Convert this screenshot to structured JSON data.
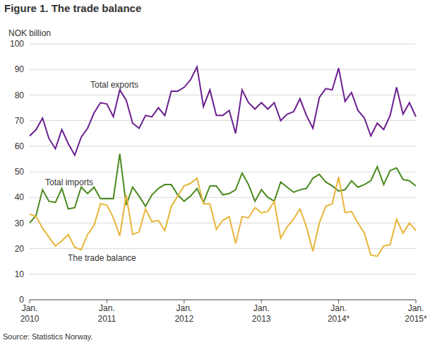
{
  "chart_data": {
    "type": "line",
    "title": "Figure 1. The trade balance",
    "y_label": "NOK billion",
    "source": "Source: Statistics Norway.",
    "categories": [
      "Jan. 2010",
      null,
      null,
      null,
      null,
      null,
      null,
      null,
      null,
      null,
      null,
      null,
      "Jan. 2011",
      null,
      null,
      null,
      null,
      null,
      null,
      null,
      null,
      null,
      null,
      null,
      "Jan. 2012",
      null,
      null,
      null,
      null,
      null,
      null,
      null,
      null,
      null,
      null,
      null,
      "Jan. 2013",
      null,
      null,
      null,
      null,
      null,
      null,
      null,
      null,
      null,
      null,
      null,
      "Jan. 2014*",
      null,
      null,
      null,
      null,
      null,
      null,
      null,
      null,
      null,
      null,
      null,
      "Jan. 2015*"
    ],
    "series": [
      {
        "name": "Total exports",
        "color": "#6b1f8f",
        "values": [
          64,
          66.5,
          71,
          63,
          59,
          66.5,
          61,
          56.5,
          63.5,
          67,
          73,
          77,
          76.5,
          71.5,
          82,
          78,
          69,
          67,
          72,
          71.5,
          75,
          72,
          81.5,
          81.5,
          83,
          86,
          91,
          75.5,
          82,
          72,
          72,
          74,
          65,
          82,
          77,
          74.5,
          77,
          74.5,
          77,
          70,
          72.5,
          73.5,
          78.5,
          72,
          67,
          79,
          82.5,
          82,
          90.5,
          77.5,
          81,
          74,
          71,
          64,
          69,
          66.5,
          72,
          83,
          72.5,
          77,
          71.5
        ]
      },
      {
        "name": "Total imports",
        "color": "#4a8a1f",
        "values": [
          30,
          33,
          43,
          38.5,
          38,
          43.5,
          35.5,
          36,
          44,
          41.5,
          44,
          39.5,
          39.5,
          39.5,
          57,
          37,
          44,
          40.5,
          36.5,
          41,
          43.5,
          45,
          45,
          41,
          38.5,
          40.5,
          43.5,
          38,
          44.5,
          44.5,
          41,
          41.5,
          43,
          49.5,
          45,
          38.5,
          43,
          40,
          38.5,
          46,
          44,
          42,
          43,
          43.5,
          47.5,
          49,
          46,
          44.5,
          42.5,
          43,
          46.5,
          44,
          45,
          46.5,
          52,
          45,
          50.5,
          51.5,
          47,
          46.5,
          44.5
        ]
      },
      {
        "name": "The trade balance",
        "color": "#e8b53a",
        "values": [
          33.5,
          32.5,
          28,
          24.5,
          21,
          23,
          25.5,
          20.5,
          19.5,
          25.5,
          29,
          37.5,
          37,
          32,
          25,
          41,
          25.5,
          26.5,
          35.5,
          30.5,
          31,
          27,
          36.5,
          40.5,
          44.5,
          45.5,
          47.5,
          37.5,
          37.5,
          27.5,
          31,
          32.5,
          22,
          32.5,
          32,
          36,
          34,
          34.5,
          38.5,
          24,
          28.5,
          31.5,
          35.5,
          28.5,
          19,
          30,
          36.5,
          37.5,
          48,
          34,
          34.5,
          30,
          26,
          17.5,
          17,
          21,
          21.5,
          31.5,
          26,
          30,
          27
        ]
      }
    ],
    "ylim": [
      0,
      100
    ],
    "yticks": [
      0,
      10,
      20,
      30,
      40,
      50,
      60,
      70,
      80,
      90,
      100
    ],
    "grid": true
  }
}
